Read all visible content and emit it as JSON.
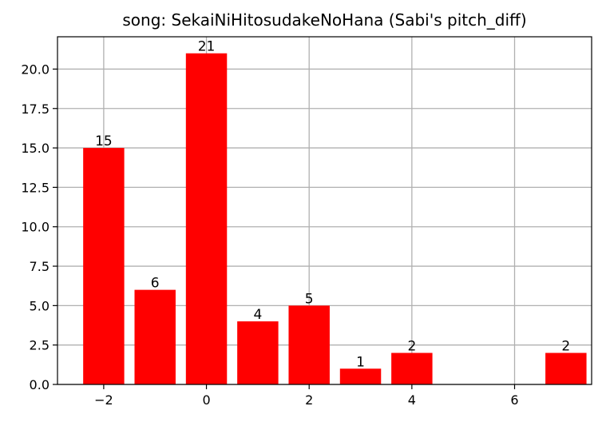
{
  "chart_data": {
    "type": "bar",
    "title": "song: SekaiNiHitosudakeNoHana (Sabi's pitch_diff)",
    "xlabel": "",
    "ylabel": "",
    "x": [
      -2,
      -1,
      0,
      1,
      2,
      3,
      4,
      7
    ],
    "values": [
      15,
      6,
      21,
      4,
      5,
      1,
      2,
      2
    ],
    "data_labels": [
      "15",
      "6",
      "21",
      "4",
      "5",
      "1",
      "2",
      "2"
    ],
    "xlim": [
      -2.9,
      7.5
    ],
    "ylim": [
      0,
      22.05
    ],
    "x_ticks": [
      -2,
      0,
      2,
      4,
      6
    ],
    "x_tick_labels": [
      "−2",
      "0",
      "2",
      "4",
      "6"
    ],
    "y_ticks": [
      0,
      2.5,
      5,
      7.5,
      10,
      12.5,
      15,
      17.5,
      20
    ],
    "y_tick_labels": [
      "0.0",
      "2.5",
      "5.0",
      "7.5",
      "10.0",
      "12.5",
      "15.0",
      "17.5",
      "20.0"
    ],
    "bar_width": 0.8,
    "grid": true,
    "legend": "none",
    "bar_color": "#ff0000",
    "grid_color": "#b0b0b0"
  }
}
